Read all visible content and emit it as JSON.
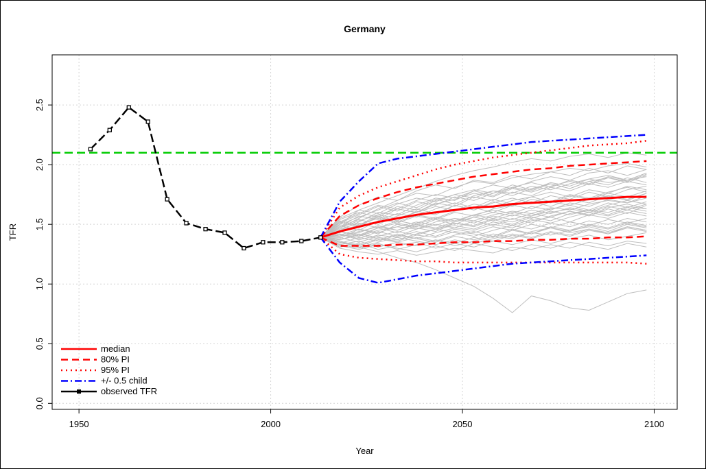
{
  "chart_data": {
    "type": "line",
    "title": "Germany",
    "xlabel": "Year",
    "ylabel": "TFR",
    "xlim": [
      1943,
      2106
    ],
    "ylim": [
      -0.05,
      2.92
    ],
    "x_ticks": [
      1950,
      2000,
      2050,
      2100
    ],
    "x_tick_labels": [
      "1950",
      "2000",
      "2050",
      "2100"
    ],
    "y_ticks": [
      0.0,
      0.5,
      1.0,
      1.5,
      2.0,
      2.5
    ],
    "y_tick_labels": [
      "0.0",
      "0.5",
      "1.0",
      "1.5",
      "2.0",
      "2.5"
    ],
    "grid": true,
    "legend_position": "bottom-left",
    "colors": {
      "median": "#ff0000",
      "pi": "#ff0000",
      "child": "#0000ff",
      "observed": "#000000",
      "replacement": "#00cc00",
      "trajectories": "#bebebe"
    },
    "reference_line": {
      "y": 2.1
    },
    "observed": {
      "x": [
        1953,
        1958,
        1963,
        1968,
        1973,
        1978,
        1983,
        1988,
        1993,
        1998,
        2003,
        2008,
        2013
      ],
      "y": [
        2.13,
        2.29,
        2.48,
        2.36,
        1.71,
        1.51,
        1.46,
        1.43,
        1.3,
        1.35,
        1.35,
        1.36,
        1.39
      ]
    },
    "projection_x": [
      2013,
      2018,
      2023,
      2028,
      2033,
      2038,
      2043,
      2048,
      2053,
      2058,
      2063,
      2068,
      2073,
      2078,
      2083,
      2088,
      2093,
      2098
    ],
    "series": [
      {
        "name": "median",
        "values": [
          1.39,
          1.44,
          1.48,
          1.52,
          1.55,
          1.58,
          1.6,
          1.62,
          1.64,
          1.65,
          1.67,
          1.68,
          1.69,
          1.7,
          1.71,
          1.72,
          1.73,
          1.73
        ]
      },
      {
        "name": "80% PI upper",
        "values": [
          1.39,
          1.57,
          1.66,
          1.72,
          1.77,
          1.81,
          1.84,
          1.87,
          1.9,
          1.92,
          1.94,
          1.96,
          1.97,
          1.99,
          2.0,
          2.01,
          2.02,
          2.03
        ]
      },
      {
        "name": "80% PI lower",
        "values": [
          1.39,
          1.32,
          1.32,
          1.32,
          1.33,
          1.33,
          1.34,
          1.35,
          1.35,
          1.36,
          1.36,
          1.37,
          1.37,
          1.38,
          1.38,
          1.39,
          1.39,
          1.4
        ]
      },
      {
        "name": "95% PI upper",
        "values": [
          1.39,
          1.64,
          1.74,
          1.81,
          1.86,
          1.91,
          1.96,
          2.0,
          2.03,
          2.06,
          2.08,
          2.1,
          2.12,
          2.14,
          2.16,
          2.17,
          2.18,
          2.2
        ]
      },
      {
        "name": "95% PI lower",
        "values": [
          1.39,
          1.25,
          1.22,
          1.21,
          1.2,
          1.19,
          1.19,
          1.18,
          1.18,
          1.18,
          1.18,
          1.18,
          1.18,
          1.18,
          1.18,
          1.18,
          1.18,
          1.17
        ]
      },
      {
        "name": "+/- 0.5 child upper",
        "values": [
          1.39,
          1.69,
          1.86,
          2.01,
          2.05,
          2.07,
          2.09,
          2.11,
          2.13,
          2.15,
          2.17,
          2.19,
          2.2,
          2.21,
          2.22,
          2.23,
          2.24,
          2.25
        ]
      },
      {
        "name": "+/- 0.5 child lower",
        "values": [
          1.39,
          1.18,
          1.05,
          1.01,
          1.04,
          1.07,
          1.09,
          1.11,
          1.13,
          1.15,
          1.17,
          1.18,
          1.19,
          1.2,
          1.21,
          1.22,
          1.23,
          1.24
        ]
      }
    ],
    "trajectories": [
      [
        1.39,
        1.45,
        1.52,
        1.6,
        1.58,
        1.66,
        1.72,
        1.7,
        1.78,
        1.83,
        1.8,
        1.86,
        1.9,
        1.87,
        1.93,
        1.95,
        1.91,
        1.96
      ],
      [
        1.39,
        1.36,
        1.31,
        1.27,
        1.22,
        1.18,
        1.12,
        1.05,
        0.98,
        0.88,
        0.76,
        0.9,
        0.86,
        0.8,
        0.78,
        0.85,
        0.92,
        0.95
      ],
      [
        1.39,
        1.5,
        1.62,
        1.68,
        1.74,
        1.8,
        1.86,
        1.91,
        1.95,
        1.98,
        2.02,
        2.05,
        2.03,
        2.07,
        2.09,
        2.06,
        2.1,
        2.08
      ],
      [
        1.39,
        1.41,
        1.4,
        1.45,
        1.48,
        1.46,
        1.52,
        1.55,
        1.53,
        1.58,
        1.61,
        1.59,
        1.64,
        1.62,
        1.67,
        1.7,
        1.68,
        1.72
      ],
      [
        1.39,
        1.33,
        1.3,
        1.34,
        1.29,
        1.33,
        1.37,
        1.32,
        1.36,
        1.4,
        1.38,
        1.43,
        1.41,
        1.45,
        1.48,
        1.44,
        1.5,
        1.47
      ],
      [
        1.39,
        1.54,
        1.6,
        1.56,
        1.65,
        1.62,
        1.7,
        1.75,
        1.72,
        1.78,
        1.76,
        1.82,
        1.79,
        1.84,
        1.88,
        1.85,
        1.87,
        1.9
      ],
      [
        1.39,
        1.38,
        1.46,
        1.42,
        1.5,
        1.47,
        1.44,
        1.51,
        1.49,
        1.55,
        1.52,
        1.57,
        1.61,
        1.58,
        1.62,
        1.6,
        1.65,
        1.63
      ],
      [
        1.39,
        1.3,
        1.27,
        1.25,
        1.28,
        1.24,
        1.27,
        1.3,
        1.28,
        1.26,
        1.31,
        1.29,
        1.33,
        1.3,
        1.35,
        1.32,
        1.36,
        1.34
      ],
      [
        1.39,
        1.47,
        1.55,
        1.63,
        1.7,
        1.76,
        1.74,
        1.81,
        1.86,
        1.84,
        1.89,
        1.92,
        1.94,
        1.97,
        1.95,
        1.99,
        2.01,
        1.98
      ],
      [
        1.39,
        1.42,
        1.37,
        1.41,
        1.39,
        1.44,
        1.4,
        1.46,
        1.43,
        1.48,
        1.45,
        1.5,
        1.47,
        1.52,
        1.49,
        1.54,
        1.51,
        1.55
      ],
      [
        1.39,
        1.52,
        1.48,
        1.57,
        1.53,
        1.61,
        1.58,
        1.66,
        1.62,
        1.69,
        1.65,
        1.71,
        1.68,
        1.74,
        1.71,
        1.76,
        1.73,
        1.78
      ],
      [
        1.39,
        1.35,
        1.33,
        1.38,
        1.36,
        1.41,
        1.39,
        1.44,
        1.42,
        1.39,
        1.45,
        1.42,
        1.47,
        1.44,
        1.49,
        1.46,
        1.51,
        1.48
      ],
      [
        1.39,
        1.48,
        1.57,
        1.54,
        1.63,
        1.6,
        1.68,
        1.65,
        1.73,
        1.7,
        1.77,
        1.74,
        1.81,
        1.78,
        1.84,
        1.81,
        1.86,
        1.83
      ],
      [
        1.39,
        1.4,
        1.43,
        1.49,
        1.45,
        1.51,
        1.56,
        1.53,
        1.58,
        1.55,
        1.6,
        1.57,
        1.63,
        1.66,
        1.62,
        1.68,
        1.64,
        1.69
      ],
      [
        1.39,
        1.31,
        1.34,
        1.29,
        1.32,
        1.35,
        1.3,
        1.34,
        1.31,
        1.36,
        1.33,
        1.37,
        1.34,
        1.38,
        1.41,
        1.37,
        1.4,
        1.43
      ],
      [
        1.39,
        1.56,
        1.66,
        1.73,
        1.7,
        1.78,
        1.83,
        1.8,
        1.87,
        1.85,
        1.91,
        1.88,
        1.94,
        1.91,
        1.97,
        1.93,
        1.99,
        1.96
      ],
      [
        1.39,
        1.44,
        1.41,
        1.47,
        1.51,
        1.48,
        1.54,
        1.5,
        1.56,
        1.6,
        1.57,
        1.62,
        1.59,
        1.64,
        1.61,
        1.66,
        1.7,
        1.67
      ],
      [
        1.39,
        1.37,
        1.42,
        1.39,
        1.37,
        1.42,
        1.46,
        1.43,
        1.4,
        1.45,
        1.49,
        1.46,
        1.51,
        1.48,
        1.53,
        1.5,
        1.55,
        1.52
      ],
      [
        1.39,
        1.49,
        1.45,
        1.53,
        1.59,
        1.56,
        1.63,
        1.68,
        1.64,
        1.71,
        1.67,
        1.73,
        1.77,
        1.73,
        1.79,
        1.76,
        1.82,
        1.79
      ],
      [
        1.39,
        1.34,
        1.39,
        1.36,
        1.41,
        1.38,
        1.43,
        1.47,
        1.45,
        1.5,
        1.47,
        1.53,
        1.56,
        1.52,
        1.58,
        1.55,
        1.6,
        1.57
      ],
      [
        1.39,
        1.46,
        1.51,
        1.47,
        1.53,
        1.5,
        1.55,
        1.52,
        1.58,
        1.62,
        1.59,
        1.65,
        1.62,
        1.68,
        1.65,
        1.71,
        1.68,
        1.74
      ],
      [
        1.39,
        1.53,
        1.49,
        1.58,
        1.63,
        1.6,
        1.67,
        1.71,
        1.76,
        1.73,
        1.8,
        1.77,
        1.82,
        1.86,
        1.83,
        1.89,
        1.86,
        1.92
      ],
      [
        1.39,
        1.39,
        1.35,
        1.4,
        1.44,
        1.41,
        1.46,
        1.49,
        1.46,
        1.52,
        1.49,
        1.54,
        1.51,
        1.56,
        1.6,
        1.57,
        1.62,
        1.59
      ],
      [
        1.39,
        1.43,
        1.5,
        1.55,
        1.51,
        1.57,
        1.54,
        1.6,
        1.57,
        1.63,
        1.66,
        1.63,
        1.69,
        1.66,
        1.71,
        1.74,
        1.71,
        1.76
      ],
      [
        1.39,
        1.32,
        1.29,
        1.33,
        1.3,
        1.27,
        1.32,
        1.28,
        1.34,
        1.31,
        1.28,
        1.33,
        1.3,
        1.35,
        1.32,
        1.29,
        1.34,
        1.31
      ],
      [
        1.39,
        1.51,
        1.58,
        1.65,
        1.61,
        1.69,
        1.66,
        1.73,
        1.7,
        1.76,
        1.81,
        1.78,
        1.84,
        1.8,
        1.86,
        1.89,
        1.85,
        1.91
      ],
      [
        1.39,
        1.41,
        1.46,
        1.43,
        1.48,
        1.52,
        1.49,
        1.55,
        1.51,
        1.57,
        1.54,
        1.59,
        1.56,
        1.61,
        1.58,
        1.64,
        1.67,
        1.63
      ],
      [
        1.39,
        1.36,
        1.32,
        1.37,
        1.42,
        1.38,
        1.35,
        1.4,
        1.37,
        1.42,
        1.39,
        1.44,
        1.47,
        1.43,
        1.46,
        1.42,
        1.48,
        1.45
      ],
      [
        1.39,
        1.48,
        1.54,
        1.5,
        1.57,
        1.63,
        1.59,
        1.66,
        1.62,
        1.68,
        1.72,
        1.68,
        1.74,
        1.71,
        1.77,
        1.73,
        1.79,
        1.82
      ],
      [
        1.39,
        1.42,
        1.38,
        1.44,
        1.4,
        1.46,
        1.5,
        1.47,
        1.53,
        1.49,
        1.55,
        1.51,
        1.57,
        1.61,
        1.57,
        1.63,
        1.59,
        1.66
      ],
      [
        1.39,
        1.55,
        1.62,
        1.59,
        1.67,
        1.72,
        1.69,
        1.75,
        1.79,
        1.76,
        1.83,
        1.79,
        1.85,
        1.82,
        1.88,
        1.91,
        1.87,
        1.93
      ],
      [
        1.39,
        1.37,
        1.41,
        1.38,
        1.35,
        1.39,
        1.36,
        1.41,
        1.44,
        1.4,
        1.46,
        1.42,
        1.48,
        1.45,
        1.5,
        1.47,
        1.52,
        1.49
      ],
      [
        1.39,
        1.45,
        1.49,
        1.56,
        1.52,
        1.58,
        1.55,
        1.61,
        1.64,
        1.6,
        1.66,
        1.69,
        1.65,
        1.71,
        1.68,
        1.74,
        1.7,
        1.76
      ],
      [
        1.39,
        1.33,
        1.36,
        1.31,
        1.35,
        1.32,
        1.37,
        1.34,
        1.39,
        1.36,
        1.41,
        1.38,
        1.43,
        1.4,
        1.45,
        1.42,
        1.47,
        1.44
      ],
      [
        1.39,
        1.5,
        1.56,
        1.62,
        1.68,
        1.64,
        1.71,
        1.67,
        1.74,
        1.78,
        1.74,
        1.8,
        1.84,
        1.8,
        1.86,
        1.83,
        1.89,
        1.85
      ],
      [
        1.39,
        1.4,
        1.44,
        1.48,
        1.45,
        1.5,
        1.47,
        1.52,
        1.56,
        1.53,
        1.58,
        1.55,
        1.6,
        1.63,
        1.6,
        1.65,
        1.62,
        1.67
      ],
      [
        1.39,
        1.35,
        1.31,
        1.35,
        1.39,
        1.36,
        1.33,
        1.37,
        1.34,
        1.38,
        1.42,
        1.39,
        1.44,
        1.41,
        1.46,
        1.43,
        1.48,
        1.45
      ],
      [
        1.39,
        1.47,
        1.53,
        1.58,
        1.55,
        1.6,
        1.65,
        1.62,
        1.67,
        1.64,
        1.7,
        1.73,
        1.69,
        1.75,
        1.72,
        1.77,
        1.81,
        1.77
      ],
      [
        1.39,
        1.44,
        1.4,
        1.47,
        1.43,
        1.49,
        1.46,
        1.51,
        1.48,
        1.54,
        1.5,
        1.56,
        1.53,
        1.59,
        1.62,
        1.58,
        1.64,
        1.61
      ],
      [
        1.39,
        1.52,
        1.59,
        1.66,
        1.63,
        1.7,
        1.75,
        1.72,
        1.78,
        1.74,
        1.81,
        1.85,
        1.81,
        1.87,
        1.84,
        1.9,
        1.87,
        1.93
      ]
    ],
    "legend": [
      {
        "label": "median",
        "style": "median"
      },
      {
        "label": "80% PI",
        "style": "pi80"
      },
      {
        "label": "95% PI",
        "style": "pi95"
      },
      {
        "label": "+/- 0.5 child",
        "style": "child"
      },
      {
        "label": "observed TFR",
        "style": "observed"
      }
    ]
  }
}
